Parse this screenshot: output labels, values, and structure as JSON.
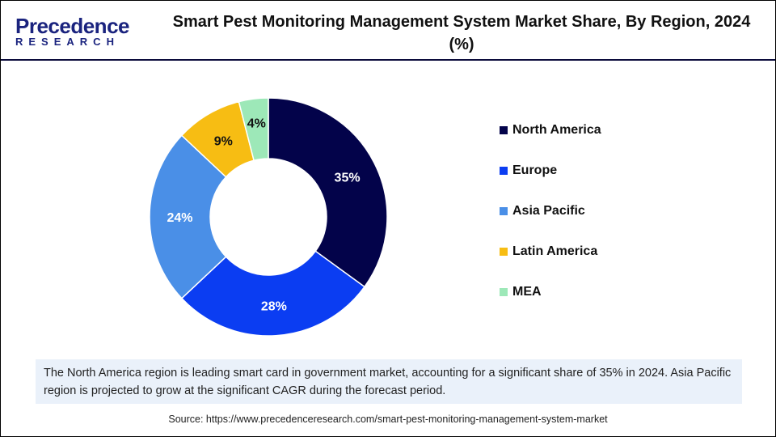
{
  "logo": {
    "line1": "Precedence",
    "line2": "RESEARCH"
  },
  "chart_data": {
    "type": "pie",
    "variant": "donut",
    "title": "Smart Pest Monitoring Management System Market Share, By Region, 2024 (%)",
    "categories": [
      "North America",
      "Europe",
      "Asia Pacific",
      "Latin America",
      "MEA"
    ],
    "values": [
      35,
      28,
      24,
      9,
      4
    ],
    "labels": [
      "35%",
      "28%",
      "24%",
      "9%",
      "4%"
    ],
    "colors": [
      "#03034a",
      "#0b3df2",
      "#4a8fe7",
      "#f7bd13",
      "#9de8b8"
    ],
    "label_colors": [
      "#ffffff",
      "#ffffff",
      "#ffffff",
      "#111111",
      "#111111"
    ],
    "legend_position": "right"
  },
  "note": "The North America region is leading smart card in government market, accounting for a significant share of 35% in 2024. Asia Pacific region is projected to grow at the significant CAGR during the forecast period.",
  "source": "Source: https://www.precedenceresearch.com/smart-pest-monitoring-management-system-market"
}
